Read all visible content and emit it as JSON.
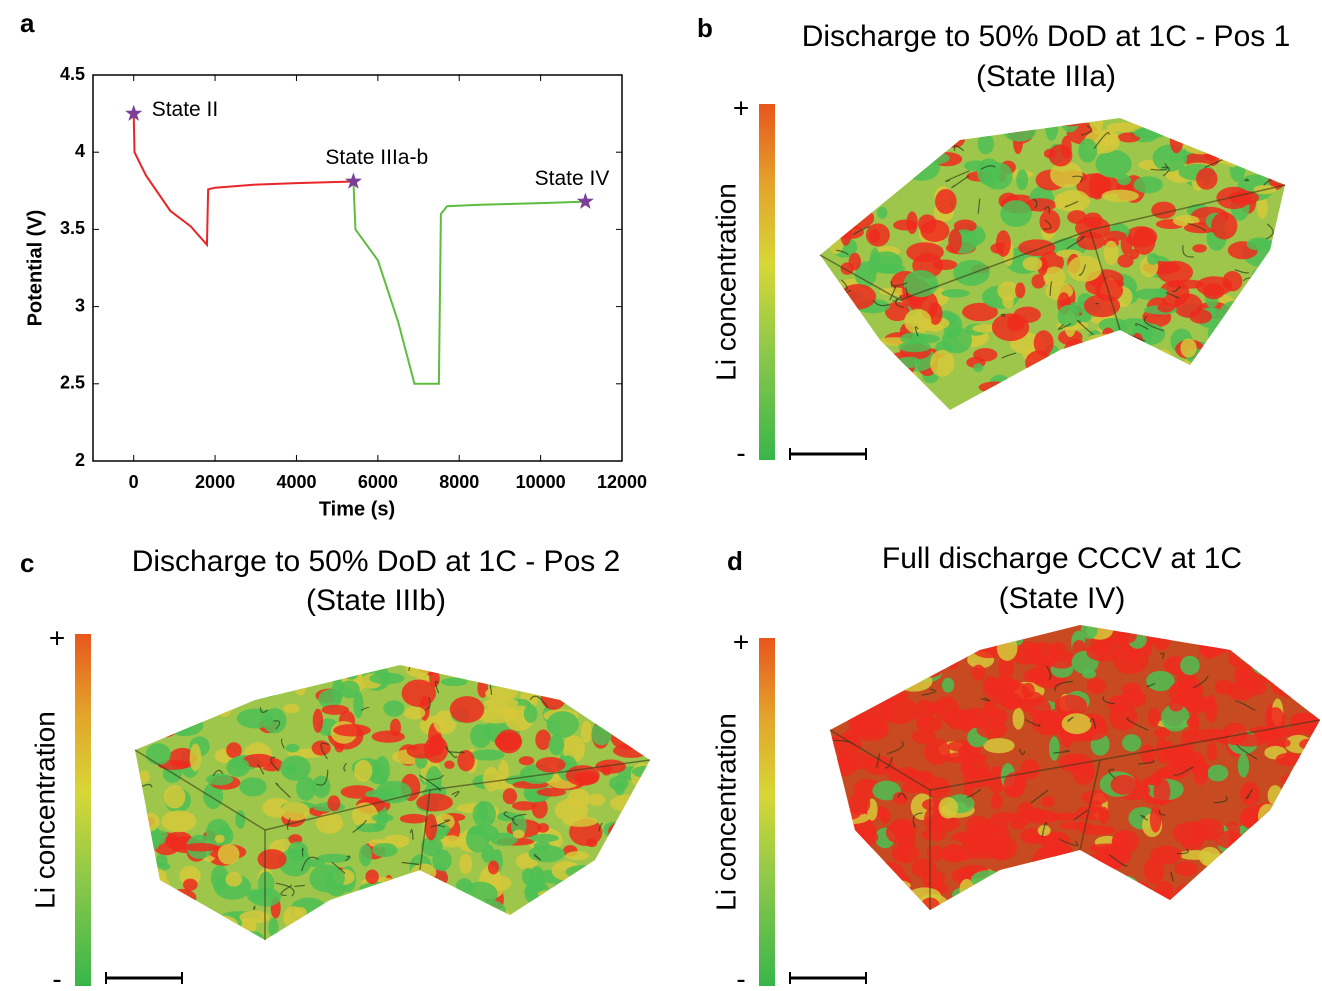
{
  "chart_data": {
    "type": "line",
    "panel": "a",
    "xlabel": "Time (s)",
    "ylabel": "Potential (V)",
    "xlim": [
      -1000,
      12000
    ],
    "xticks": [
      0,
      2000,
      4000,
      6000,
      8000,
      10000,
      12000
    ],
    "ylim": [
      2,
      4.5
    ],
    "yticks": [
      2,
      2.5,
      3,
      3.5,
      4,
      4.5
    ],
    "series": [
      {
        "color": "#e8262a",
        "x": [
          0,
          20,
          300,
          900,
          1400,
          1800,
          1830,
          2000,
          3000,
          4000,
          5400
        ],
        "values": [
          4.25,
          4.0,
          3.85,
          3.62,
          3.52,
          3.4,
          3.76,
          3.77,
          3.79,
          3.8,
          3.81
        ]
      },
      {
        "color": "#5ebd3e",
        "x": [
          5400,
          5450,
          6000,
          6500,
          6900,
          7500,
          7550,
          7700,
          8500,
          10000,
          11100
        ],
        "values": [
          3.81,
          3.5,
          3.3,
          2.9,
          2.5,
          2.5,
          3.6,
          3.65,
          3.66,
          3.67,
          3.68
        ]
      }
    ],
    "marker_color": "#7b3f98",
    "annotations": [
      {
        "text": "State II",
        "x": 0,
        "y": 4.25
      },
      {
        "text": "State IIIa-b",
        "x": 5400,
        "y": 3.81
      },
      {
        "text": "State IV",
        "x": 11100,
        "y": 3.68
      }
    ]
  },
  "panels": [
    {
      "letter": "b",
      "title": [
        "Discharge to 50% DoD at 1C - Pos 1",
        "(State IIIa)"
      ],
      "colorbar": {
        "label": "Li concentration",
        "max": "+",
        "min": "-"
      }
    },
    {
      "letter": "c",
      "title": [
        "Discharge to 50% DoD at 1C - Pos 2",
        "(State IIIb)"
      ],
      "colorbar": {
        "label": "Li concentration",
        "max": "+",
        "min": "-"
      }
    },
    {
      "letter": "d",
      "title": [
        "Full discharge CCCV at 1C",
        "(State IV)"
      ],
      "colorbar": {
        "label": "Li concentration",
        "max": "+",
        "min": "-"
      }
    }
  ]
}
